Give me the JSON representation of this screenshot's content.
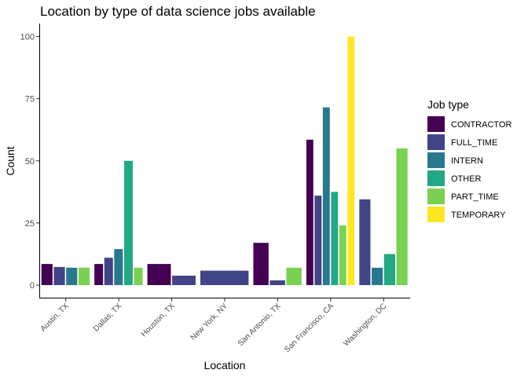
{
  "chart_data": {
    "type": "bar",
    "title": "Location by type of data science jobs available",
    "xlabel": "Location",
    "ylabel": "Count",
    "ylim": [
      -5,
      105
    ],
    "yticks": [
      0,
      25,
      50,
      75,
      100
    ],
    "grid": false,
    "legend": {
      "title": "Job type",
      "placement": "right"
    },
    "categories": [
      "Austin, TX",
      "Dallas, TX",
      "Houston, TX",
      "New York, NY",
      "San Antonio, TX",
      "San Francisco, CA",
      "Washington, DC"
    ],
    "series": [
      {
        "name": "CONTRACTOR",
        "color": "#440154"
      },
      {
        "name": "FULL_TIME",
        "color": "#414487"
      },
      {
        "name": "INTERN",
        "color": "#2A788E"
      },
      {
        "name": "OTHER",
        "color": "#22A884"
      },
      {
        "name": "PART_TIME",
        "color": "#7AD151"
      },
      {
        "name": "TEMPORARY",
        "color": "#FDE725"
      }
    ],
    "groups": [
      {
        "category": "Austin, TX",
        "bars": [
          {
            "series": "CONTRACTOR",
            "value": 8.5
          },
          {
            "series": "FULL_TIME",
            "value": 7.3
          },
          {
            "series": "INTERN",
            "value": 7
          },
          {
            "series": "PART_TIME",
            "value": 7
          }
        ]
      },
      {
        "category": "Dallas, TX",
        "bars": [
          {
            "series": "CONTRACTOR",
            "value": 8.5
          },
          {
            "series": "FULL_TIME",
            "value": 11
          },
          {
            "series": "INTERN",
            "value": 14.5
          },
          {
            "series": "OTHER",
            "value": 50
          },
          {
            "series": "PART_TIME",
            "value": 7
          }
        ]
      },
      {
        "category": "Houston, TX",
        "bars": [
          {
            "series": "CONTRACTOR",
            "value": 8.5
          },
          {
            "series": "FULL_TIME",
            "value": 3.8
          }
        ]
      },
      {
        "category": "New York, NY",
        "bars": [
          {
            "series": "FULL_TIME",
            "value": 5.8
          }
        ]
      },
      {
        "category": "San Antonio, TX",
        "bars": [
          {
            "series": "CONTRACTOR",
            "value": 17
          },
          {
            "series": "FULL_TIME",
            "value": 1.9
          },
          {
            "series": "PART_TIME",
            "value": 7
          }
        ]
      },
      {
        "category": "San Francisco, CA",
        "bars": [
          {
            "series": "CONTRACTOR",
            "value": 58.5
          },
          {
            "series": "FULL_TIME",
            "value": 36
          },
          {
            "series": "INTERN",
            "value": 71.5
          },
          {
            "series": "OTHER",
            "value": 37.5
          },
          {
            "series": "PART_TIME",
            "value": 24
          },
          {
            "series": "TEMPORARY",
            "value": 100
          }
        ]
      },
      {
        "category": "Washington, DC",
        "bars": [
          {
            "series": "FULL_TIME",
            "value": 34.5
          },
          {
            "series": "INTERN",
            "value": 7
          },
          {
            "series": "OTHER",
            "value": 12.5
          },
          {
            "series": "PART_TIME",
            "value": 55
          }
        ]
      }
    ]
  }
}
